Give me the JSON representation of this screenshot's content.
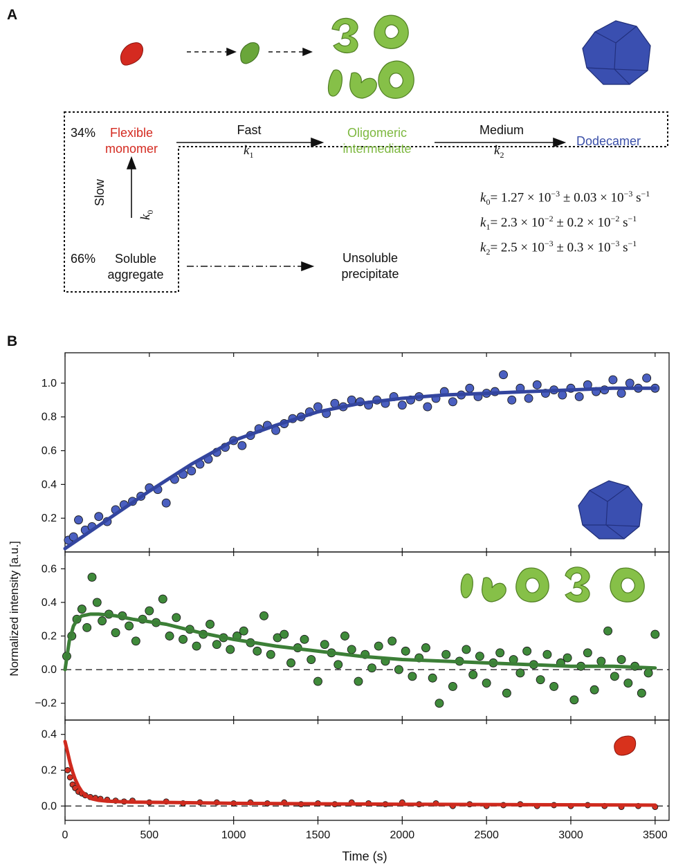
{
  "panel_a": {
    "letter": "A",
    "monomer_pct": "34%",
    "monomer_label": [
      "Flexible",
      "monomer"
    ],
    "fast_label": "Fast",
    "k1_label": "k",
    "k1_sub": "1",
    "intermediate_label": [
      "Oligomeric",
      "intermediate"
    ],
    "medium_label": "Medium",
    "k2_label": "k",
    "k2_sub": "2",
    "dodecamer_label": "Dodecamer",
    "slow_label": "Slow",
    "k0_label": "k",
    "k0_sub": "0",
    "aggregate_pct": "66%",
    "aggregate_label": [
      "Soluble",
      "aggregate"
    ],
    "precipitate_label": [
      "Unsoluble",
      "precipitate"
    ],
    "rates": [
      {
        "sym": "k",
        "sub": "0",
        "text": "= 1.27 × 10",
        "e1": "−3",
        "mid": " ± 0.03 × 10",
        "e2": "−3",
        "unit": " s",
        "ue": "−1"
      },
      {
        "sym": "k",
        "sub": "1",
        "text": "= 2.3 × 10",
        "e1": "−2",
        "mid": "  ± 0.2 × 10",
        "e2": "−2",
        "unit": " s",
        "ue": "−1"
      },
      {
        "sym": "k",
        "sub": "2",
        "text": "= 2.5 × 10",
        "e1": "−3",
        "mid": " ± 0.3 × 10",
        "e2": "−3",
        "unit": " s",
        "ue": "−1"
      }
    ],
    "colors": {
      "monomer": "#d42a20",
      "intermediate": "#7db83f",
      "dodecamer": "#3a4fa8"
    }
  },
  "panel_b": {
    "letter": "B",
    "ylabel": "Normalized intensity [a.u.]",
    "xlabel": "Time (s)"
  },
  "chart_data": [
    {
      "type": "scatter",
      "id": "dodecamer",
      "color": "#4a5fc0",
      "line_color": "#33459e",
      "ylim": [
        0,
        1.18
      ],
      "xlim": [
        0,
        3550
      ],
      "yticks": [
        0.2,
        0.4,
        0.6,
        0.8,
        1.0
      ],
      "fit": {
        "x": [
          0,
          250,
          500,
          750,
          1000,
          1250,
          1500,
          1750,
          2000,
          2250,
          2500,
          2750,
          3000,
          3250,
          3500
        ],
        "y": [
          0.02,
          0.19,
          0.36,
          0.52,
          0.66,
          0.75,
          0.83,
          0.88,
          0.91,
          0.93,
          0.94,
          0.95,
          0.96,
          0.97,
          0.97
        ]
      },
      "points": {
        "x": [
          20,
          50,
          80,
          120,
          160,
          200,
          250,
          300,
          350,
          400,
          450,
          500,
          550,
          600,
          650,
          700,
          750,
          800,
          850,
          900,
          950,
          1000,
          1050,
          1100,
          1150,
          1200,
          1250,
          1300,
          1350,
          1400,
          1450,
          1500,
          1550,
          1600,
          1650,
          1700,
          1750,
          1800,
          1850,
          1900,
          1950,
          2000,
          2050,
          2100,
          2150,
          2200,
          2250,
          2300,
          2350,
          2400,
          2450,
          2500,
          2550,
          2600,
          2650,
          2700,
          2750,
          2800,
          2850,
          2900,
          2950,
          3000,
          3050,
          3100,
          3150,
          3200,
          3250,
          3300,
          3350,
          3400,
          3450,
          3500
        ],
        "y": [
          0.07,
          0.09,
          0.19,
          0.13,
          0.15,
          0.21,
          0.18,
          0.25,
          0.28,
          0.3,
          0.33,
          0.38,
          0.37,
          0.29,
          0.43,
          0.46,
          0.48,
          0.52,
          0.55,
          0.59,
          0.62,
          0.66,
          0.63,
          0.69,
          0.73,
          0.75,
          0.72,
          0.76,
          0.79,
          0.8,
          0.83,
          0.86,
          0.82,
          0.88,
          0.86,
          0.9,
          0.89,
          0.87,
          0.9,
          0.88,
          0.92,
          0.87,
          0.9,
          0.92,
          0.86,
          0.91,
          0.95,
          0.89,
          0.93,
          0.97,
          0.92,
          0.94,
          0.95,
          1.05,
          0.9,
          0.97,
          0.91,
          0.99,
          0.94,
          0.96,
          0.93,
          0.97,
          0.92,
          0.99,
          0.95,
          0.96,
          1.02,
          0.94,
          1.0,
          0.97,
          1.03,
          0.97
        ]
      }
    },
    {
      "type": "scatter",
      "id": "intermediate",
      "color": "#3f8a3a",
      "line_color": "#3c7f37",
      "ylim": [
        -0.3,
        0.7
      ],
      "xlim": [
        0,
        3550
      ],
      "yticks": [
        -0.2,
        0.0,
        0.2,
        0.4,
        0.6
      ],
      "zero_line": true,
      "fit": {
        "x": [
          0,
          25,
          50,
          75,
          100,
          150,
          200,
          300,
          400,
          600,
          800,
          1000,
          1250,
          1500,
          1750,
          2000,
          2250,
          2500,
          2750,
          3000,
          3250,
          3500
        ],
        "y": [
          0.0,
          0.17,
          0.26,
          0.3,
          0.32,
          0.33,
          0.33,
          0.32,
          0.3,
          0.27,
          0.22,
          0.18,
          0.14,
          0.11,
          0.08,
          0.06,
          0.05,
          0.04,
          0.03,
          0.02,
          0.02,
          0.01
        ]
      },
      "points": {
        "x": [
          10,
          40,
          70,
          100,
          130,
          160,
          190,
          220,
          260,
          300,
          340,
          380,
          420,
          460,
          500,
          540,
          580,
          620,
          660,
          700,
          740,
          780,
          820,
          860,
          900,
          940,
          980,
          1020,
          1060,
          1100,
          1140,
          1180,
          1220,
          1260,
          1300,
          1340,
          1380,
          1420,
          1460,
          1500,
          1540,
          1580,
          1620,
          1660,
          1700,
          1740,
          1780,
          1820,
          1860,
          1900,
          1940,
          1980,
          2020,
          2060,
          2100,
          2140,
          2180,
          2220,
          2260,
          2300,
          2340,
          2380,
          2420,
          2460,
          2500,
          2540,
          2580,
          2620,
          2660,
          2700,
          2740,
          2780,
          2820,
          2860,
          2900,
          2940,
          2980,
          3020,
          3060,
          3100,
          3140,
          3180,
          3220,
          3260,
          3300,
          3340,
          3380,
          3420,
          3460,
          3500
        ],
        "y": [
          0.08,
          0.2,
          0.3,
          0.36,
          0.25,
          0.55,
          0.4,
          0.29,
          0.33,
          0.22,
          0.32,
          0.26,
          0.17,
          0.3,
          0.35,
          0.28,
          0.42,
          0.2,
          0.31,
          0.18,
          0.24,
          0.14,
          0.21,
          0.27,
          0.15,
          0.19,
          0.12,
          0.2,
          0.23,
          0.16,
          0.11,
          0.32,
          0.09,
          0.19,
          0.21,
          0.04,
          0.13,
          0.18,
          0.06,
          -0.07,
          0.15,
          0.1,
          0.03,
          0.2,
          0.12,
          -0.07,
          0.09,
          0.01,
          0.14,
          0.05,
          0.17,
          0.0,
          0.11,
          -0.04,
          0.07,
          0.13,
          -0.05,
          -0.2,
          0.09,
          -0.1,
          0.05,
          0.12,
          -0.03,
          0.08,
          -0.08,
          0.04,
          0.1,
          -0.14,
          0.06,
          -0.02,
          0.11,
          0.03,
          -0.06,
          0.09,
          -0.1,
          0.04,
          0.07,
          -0.18,
          0.02,
          0.1,
          -0.12,
          0.05,
          0.23,
          -0.04,
          0.06,
          -0.08,
          0.02,
          -0.14,
          -0.02,
          0.21
        ]
      }
    },
    {
      "type": "scatter",
      "id": "monomer",
      "color": "#d23224",
      "line_color": "#cf2a1e",
      "ylim": [
        -0.08,
        0.48
      ],
      "xlim": [
        0,
        3550
      ],
      "yticks": [
        0.0,
        0.2,
        0.4
      ],
      "zero_line": true,
      "xticks": [
        0,
        500,
        1000,
        1500,
        2000,
        2500,
        3000,
        3500
      ],
      "fit": {
        "x": [
          0,
          15,
          30,
          45,
          60,
          80,
          100,
          130,
          160,
          200,
          250,
          300,
          400,
          600,
          1000,
          2000,
          3500
        ],
        "y": [
          0.36,
          0.3,
          0.24,
          0.19,
          0.15,
          0.11,
          0.08,
          0.055,
          0.04,
          0.032,
          0.027,
          0.025,
          0.022,
          0.02,
          0.015,
          0.01,
          0.005
        ]
      },
      "points": {
        "x": [
          15,
          30,
          45,
          60,
          80,
          100,
          120,
          150,
          180,
          210,
          250,
          300,
          350,
          400,
          500,
          600,
          700,
          800,
          900,
          1000,
          1100,
          1200,
          1300,
          1400,
          1500,
          1600,
          1700,
          1800,
          1900,
          2000,
          2100,
          2200,
          2300,
          2400,
          2500,
          2600,
          2700,
          2800,
          2900,
          3000,
          3100,
          3200,
          3300,
          3400,
          3500
        ],
        "y": [
          0.2,
          0.16,
          0.12,
          0.1,
          0.08,
          0.07,
          0.06,
          0.05,
          0.045,
          0.04,
          0.035,
          0.03,
          0.025,
          0.03,
          0.02,
          0.025,
          0.015,
          0.02,
          0.02,
          0.015,
          0.02,
          0.015,
          0.02,
          0.01,
          0.015,
          0.01,
          0.02,
          0.015,
          0.01,
          0.02,
          0.01,
          0.015,
          0.0,
          0.01,
          0.0,
          0.005,
          0.01,
          0.0,
          0.005,
          0.0,
          0.005,
          0.0,
          -0.005,
          0.0,
          -0.005
        ]
      }
    }
  ]
}
